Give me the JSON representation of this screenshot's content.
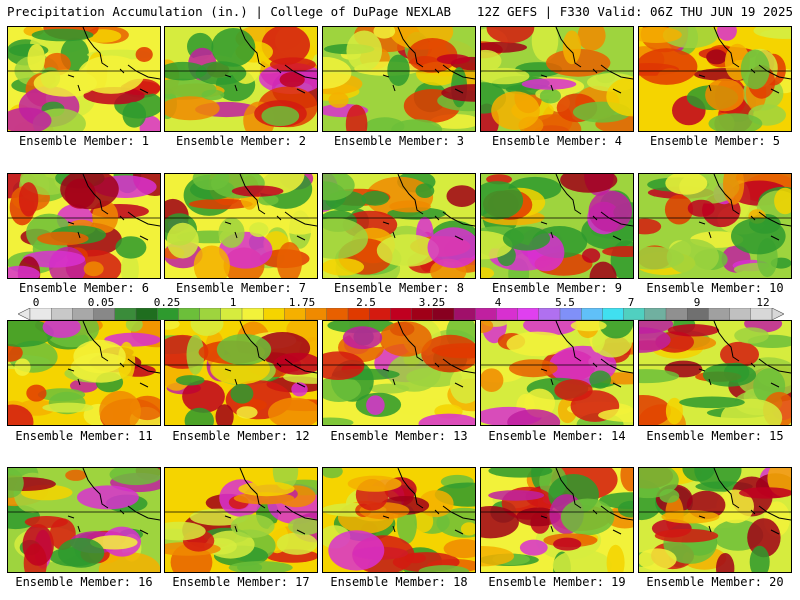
{
  "header": {
    "left": "Precipitation Accumulation (in.) | College of DuPage NEXLAB",
    "right": "12Z GEFS | F330 Valid: 06Z THU JUN 19 2025"
  },
  "members": [
    {
      "label": "Ensemble Member: 1"
    },
    {
      "label": "Ensemble Member: 2"
    },
    {
      "label": "Ensemble Member: 3"
    },
    {
      "label": "Ensemble Member: 4"
    },
    {
      "label": "Ensemble Member: 5"
    },
    {
      "label": "Ensemble Member: 6"
    },
    {
      "label": "Ensemble Member: 7"
    },
    {
      "label": "Ensemble Member: 8"
    },
    {
      "label": "Ensemble Member: 9"
    },
    {
      "label": "Ensemble Member: 10"
    },
    {
      "label": "Ensemble Member: 11"
    },
    {
      "label": "Ensemble Member: 12"
    },
    {
      "label": "Ensemble Member: 13"
    },
    {
      "label": "Ensemble Member: 14"
    },
    {
      "label": "Ensemble Member: 15"
    },
    {
      "label": "Ensemble Member: 16"
    },
    {
      "label": "Ensemble Member: 17"
    },
    {
      "label": "Ensemble Member: 18"
    },
    {
      "label": "Ensemble Member: 19"
    },
    {
      "label": "Ensemble Member: 20"
    }
  ],
  "colorbar": {
    "ticks": [
      "0",
      "0.05",
      "0.25",
      "1",
      "1.75",
      "2.5",
      "3.25",
      "4",
      "5.5",
      "7",
      "9",
      "12"
    ],
    "colors": [
      "#e8e8e8",
      "#c8c8c8",
      "#a8a8a8",
      "#888888",
      "#3a8c3a",
      "#1f6e1f",
      "#2e9a2e",
      "#6cbf3a",
      "#9ed43e",
      "#d6ec3e",
      "#f2f23a",
      "#f5d400",
      "#f5b000",
      "#f08a00",
      "#e86000",
      "#e03a00",
      "#d41a10",
      "#c00020",
      "#a00018",
      "#880020",
      "#a0106a",
      "#c020a0",
      "#d830d0",
      "#e040f0",
      "#b070f0",
      "#8090f8",
      "#60c0f8",
      "#40e0f0",
      "#50d0c0",
      "#70b0a0",
      "#909090",
      "#707070",
      "#a0a0a0",
      "#c0c0c0",
      "#d8d8d8"
    ]
  }
}
